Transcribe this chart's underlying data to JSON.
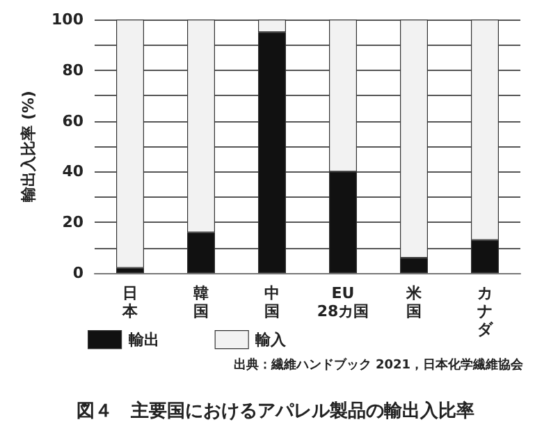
{
  "chart_data": {
    "type": "bar",
    "title": "図４　主要国におけるアパレル製品の輸出入比率",
    "ylabel": "輸出入比率 (%)",
    "annotations": [
      "出典：繊維ハンドブック 2021，日本化学繊維協会"
    ],
    "categories": [
      "日本",
      "韓国",
      "中国",
      "EU 28カ国",
      "米国",
      "カナダ"
    ],
    "series": [
      {
        "name": "輸出",
        "color": "#111111",
        "values": [
          2,
          16,
          95,
          40,
          6,
          13
        ]
      },
      {
        "name": "輸入",
        "color": "#f2f2f2",
        "values": [
          98,
          84,
          5,
          60,
          94,
          87
        ]
      }
    ],
    "stacked": true,
    "ylim": [
      0,
      100
    ],
    "yticks": [
      0,
      {
        "value": 10,
        "label": null
      },
      20,
      {
        "value": 30,
        "label": null
      },
      40,
      {
        "value": 50,
        "label": null
      },
      60,
      {
        "value": 70,
        "label": null
      },
      80,
      {
        "value": 90,
        "label": null
      },
      100
    ],
    "grid": true,
    "legend": "bottom left"
  }
}
